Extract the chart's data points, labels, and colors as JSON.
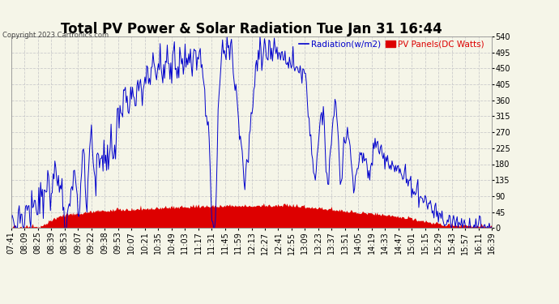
{
  "title": "Total PV Power & Solar Radiation Tue Jan 31 16:44",
  "copyright": "Copyright 2023 Cartronics.com",
  "legend_radiation": "Radiation(w/m2)",
  "legend_pv": "PV Panels(DC Watts)",
  "yticks": [
    0.0,
    45.0,
    90.0,
    135.0,
    180.0,
    225.0,
    270.0,
    315.0,
    360.0,
    405.0,
    450.0,
    495.0,
    540.0
  ],
  "ymin": 0.0,
  "ymax": 540.0,
  "bg_color": "#f5f5e8",
  "plot_bg_color": "#f5f5e8",
  "grid_color": "#cccccc",
  "line_color_radiation": "#0000cc",
  "fill_color_pv": "#dd0000",
  "title_fontsize": 12,
  "tick_fontsize": 7,
  "x_labels": [
    "07:41",
    "08:09",
    "08:25",
    "08:39",
    "08:53",
    "09:07",
    "09:22",
    "09:38",
    "09:53",
    "10:07",
    "10:21",
    "10:35",
    "10:49",
    "11:03",
    "11:17",
    "11:31",
    "11:45",
    "11:59",
    "12:13",
    "12:27",
    "12:41",
    "12:55",
    "13:09",
    "13:23",
    "13:37",
    "13:51",
    "14:05",
    "14:19",
    "14:33",
    "14:47",
    "15:01",
    "15:15",
    "15:29",
    "15:43",
    "15:57",
    "16:11",
    "16:39"
  ]
}
